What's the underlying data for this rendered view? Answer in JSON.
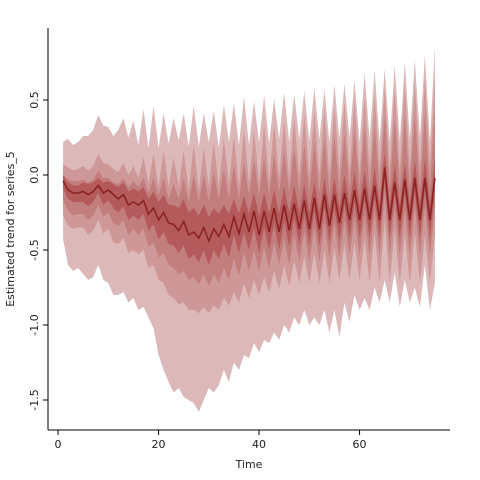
{
  "chart_data": {
    "type": "area",
    "xlabel": "Time",
    "ylabel": "Estimated trend for series_5",
    "xlim": [
      -2,
      78
    ],
    "ylim": [
      -1.7,
      0.98
    ],
    "xticks": [
      0,
      20,
      40,
      60
    ],
    "yticks": [
      -1.5,
      -1.0,
      -0.5,
      0.0,
      0.5
    ],
    "ytick_labels": [
      "-1.5",
      "-1.0",
      "-0.5",
      "0.0",
      "0.5"
    ],
    "band_colors": [
      "#dcb8b8",
      "#cf9898",
      "#c27d7d",
      "#b55a5a"
    ],
    "median_color": "#8b2323",
    "x": [
      1,
      2,
      3,
      4,
      5,
      6,
      7,
      8,
      9,
      10,
      11,
      12,
      13,
      14,
      15,
      16,
      17,
      18,
      19,
      20,
      21,
      22,
      23,
      24,
      25,
      26,
      27,
      28,
      29,
      30,
      31,
      32,
      33,
      34,
      35,
      36,
      37,
      38,
      39,
      40,
      41,
      42,
      43,
      44,
      45,
      46,
      47,
      48,
      49,
      50,
      51,
      52,
      53,
      54,
      55,
      56,
      57,
      58,
      59,
      60,
      61,
      62,
      63,
      64,
      65,
      66,
      67,
      68,
      69,
      70,
      71,
      72,
      73,
      74,
      75
    ],
    "median": [
      -0.04,
      -0.1,
      -0.12,
      -0.12,
      -0.11,
      -0.13,
      -0.11,
      -0.07,
      -0.12,
      -0.1,
      -0.13,
      -0.16,
      -0.13,
      -0.2,
      -0.18,
      -0.2,
      -0.17,
      -0.26,
      -0.22,
      -0.3,
      -0.25,
      -0.32,
      -0.33,
      -0.37,
      -0.31,
      -0.4,
      -0.38,
      -0.42,
      -0.35,
      -0.44,
      -0.36,
      -0.41,
      -0.33,
      -0.41,
      -0.28,
      -0.39,
      -0.26,
      -0.38,
      -0.24,
      -0.4,
      -0.24,
      -0.38,
      -0.22,
      -0.38,
      -0.2,
      -0.37,
      -0.19,
      -0.36,
      -0.17,
      -0.36,
      -0.15,
      -0.36,
      -0.13,
      -0.34,
      -0.13,
      -0.32,
      -0.12,
      -0.3,
      -0.1,
      -0.3,
      -0.09,
      -0.3,
      -0.07,
      -0.3,
      0.05,
      -0.3,
      -0.05,
      -0.3,
      -0.03,
      -0.3,
      -0.02,
      -0.3,
      -0.02,
      -0.3,
      -0.02
    ],
    "bands": [
      {
        "lower": [
          -0.43,
          -0.6,
          -0.64,
          -0.62,
          -0.66,
          -0.7,
          -0.68,
          -0.6,
          -0.7,
          -0.72,
          -0.8,
          -0.8,
          -0.78,
          -0.85,
          -0.82,
          -0.9,
          -0.88,
          -0.95,
          -1.02,
          -1.2,
          -1.3,
          -1.38,
          -1.45,
          -1.42,
          -1.48,
          -1.5,
          -1.52,
          -1.58,
          -1.5,
          -1.42,
          -1.45,
          -1.4,
          -1.3,
          -1.38,
          -1.25,
          -1.3,
          -1.2,
          -1.22,
          -1.12,
          -1.18,
          -1.1,
          -1.12,
          -1.05,
          -1.1,
          -1.0,
          -1.05,
          -0.95,
          -1.0,
          -0.9,
          -1.0,
          -0.95,
          -1.0,
          -0.9,
          -1.05,
          -0.9,
          -1.08,
          -0.85,
          -0.98,
          -0.8,
          -0.9,
          -0.82,
          -0.9,
          -0.75,
          -0.85,
          -0.7,
          -0.85,
          -0.65,
          -0.88,
          -0.7,
          -0.85,
          -0.75,
          -0.88,
          -0.6,
          -0.9,
          -0.72
        ],
        "upper": [
          0.22,
          0.24,
          0.2,
          0.22,
          0.26,
          0.26,
          0.3,
          0.4,
          0.33,
          0.32,
          0.26,
          0.3,
          0.38,
          0.25,
          0.36,
          0.2,
          0.44,
          0.18,
          0.46,
          0.18,
          0.41,
          0.21,
          0.38,
          0.23,
          0.41,
          0.19,
          0.46,
          0.19,
          0.41,
          0.22,
          0.43,
          0.18,
          0.47,
          0.22,
          0.48,
          0.2,
          0.52,
          0.2,
          0.49,
          0.22,
          0.53,
          0.21,
          0.51,
          0.24,
          0.55,
          0.22,
          0.54,
          0.24,
          0.56,
          0.23,
          0.58,
          0.24,
          0.57,
          0.22,
          0.6,
          0.24,
          0.61,
          0.25,
          0.63,
          0.22,
          0.68,
          0.24,
          0.7,
          0.22,
          0.71,
          0.22,
          0.73,
          0.23,
          0.75,
          0.24,
          0.77,
          0.25,
          0.8,
          0.22,
          0.86
        ]
      },
      {
        "lower": [
          -0.27,
          -0.34,
          -0.36,
          -0.35,
          -0.35,
          -0.4,
          -0.37,
          -0.3,
          -0.39,
          -0.36,
          -0.45,
          -0.46,
          -0.42,
          -0.52,
          -0.5,
          -0.53,
          -0.5,
          -0.62,
          -0.6,
          -0.7,
          -0.72,
          -0.8,
          -0.82,
          -0.86,
          -0.85,
          -0.9,
          -0.9,
          -0.92,
          -0.88,
          -0.92,
          -0.87,
          -0.9,
          -0.82,
          -0.87,
          -0.78,
          -0.85,
          -0.72,
          -0.82,
          -0.7,
          -0.8,
          -0.68,
          -0.78,
          -0.64,
          -0.76,
          -0.6,
          -0.74,
          -0.57,
          -0.72,
          -0.54,
          -0.72,
          -0.52,
          -0.72,
          -0.5,
          -0.72,
          -0.48,
          -0.7,
          -0.46,
          -0.7,
          -0.45,
          -0.7,
          -0.42,
          -0.72,
          -0.38,
          -0.72,
          -0.3,
          -0.72,
          -0.36,
          -0.72,
          -0.38,
          -0.72,
          -0.38,
          -0.72,
          -0.4,
          -0.72,
          -0.4
        ],
        "upper": [
          0.07,
          0.05,
          0.03,
          0.04,
          0.06,
          0.03,
          0.06,
          0.14,
          0.08,
          0.07,
          0.04,
          0.02,
          0.08,
          0.0,
          0.06,
          -0.02,
          0.12,
          -0.06,
          0.14,
          -0.08,
          0.16,
          -0.08,
          0.12,
          -0.08,
          0.16,
          -0.1,
          0.2,
          -0.1,
          0.18,
          -0.08,
          0.22,
          -0.08,
          0.24,
          -0.06,
          0.26,
          -0.08,
          0.3,
          -0.06,
          0.3,
          -0.06,
          0.33,
          -0.04,
          0.34,
          -0.02,
          0.36,
          -0.02,
          0.38,
          0.0,
          0.4,
          0.0,
          0.42,
          0.0,
          0.44,
          0.0,
          0.46,
          0.02,
          0.48,
          0.02,
          0.5,
          0.02,
          0.52,
          0.04,
          0.54,
          0.04,
          0.58,
          0.04,
          0.58,
          0.04,
          0.6,
          0.05,
          0.62,
          0.05,
          0.64,
          0.05,
          0.65
        ]
      },
      {
        "lower": [
          -0.17,
          -0.24,
          -0.27,
          -0.26,
          -0.26,
          -0.3,
          -0.27,
          -0.2,
          -0.28,
          -0.25,
          -0.32,
          -0.34,
          -0.3,
          -0.4,
          -0.36,
          -0.4,
          -0.36,
          -0.48,
          -0.45,
          -0.55,
          -0.52,
          -0.6,
          -0.62,
          -0.66,
          -0.64,
          -0.7,
          -0.68,
          -0.73,
          -0.66,
          -0.74,
          -0.66,
          -0.72,
          -0.62,
          -0.7,
          -0.56,
          -0.67,
          -0.52,
          -0.64,
          -0.5,
          -0.64,
          -0.48,
          -0.62,
          -0.45,
          -0.6,
          -0.42,
          -0.6,
          -0.4,
          -0.58,
          -0.37,
          -0.58,
          -0.34,
          -0.58,
          -0.32,
          -0.56,
          -0.32,
          -0.56,
          -0.3,
          -0.54,
          -0.28,
          -0.54,
          -0.27,
          -0.54,
          -0.24,
          -0.54,
          -0.12,
          -0.54,
          -0.22,
          -0.54,
          -0.22,
          -0.54,
          -0.2,
          -0.54,
          -0.2,
          -0.54,
          -0.2
        ],
        "upper": [
          0.0,
          -0.03,
          -0.04,
          -0.04,
          -0.03,
          -0.05,
          -0.03,
          0.03,
          -0.02,
          -0.02,
          -0.05,
          -0.06,
          -0.02,
          -0.08,
          -0.04,
          -0.08,
          -0.02,
          -0.12,
          -0.02,
          -0.14,
          -0.02,
          -0.16,
          -0.06,
          -0.16,
          -0.02,
          -0.18,
          0.0,
          -0.18,
          0.0,
          -0.18,
          0.02,
          -0.16,
          0.04,
          -0.16,
          0.06,
          -0.16,
          0.08,
          -0.14,
          0.1,
          -0.14,
          0.12,
          -0.14,
          0.14,
          -0.12,
          0.16,
          -0.12,
          0.18,
          -0.12,
          0.2,
          -0.12,
          0.22,
          -0.12,
          0.24,
          -0.12,
          0.26,
          -0.12,
          0.28,
          -0.1,
          0.3,
          -0.1,
          0.32,
          -0.1,
          0.33,
          -0.1,
          0.4,
          -0.1,
          0.37,
          -0.1,
          0.38,
          -0.1,
          0.4,
          -0.1,
          0.41,
          -0.1,
          0.42
        ]
      },
      {
        "lower": [
          -0.09,
          -0.16,
          -0.18,
          -0.18,
          -0.18,
          -0.21,
          -0.18,
          -0.12,
          -0.2,
          -0.17,
          -0.22,
          -0.25,
          -0.21,
          -0.3,
          -0.27,
          -0.3,
          -0.26,
          -0.37,
          -0.33,
          -0.43,
          -0.38,
          -0.46,
          -0.47,
          -0.52,
          -0.47,
          -0.56,
          -0.53,
          -0.58,
          -0.5,
          -0.6,
          -0.5,
          -0.56,
          -0.46,
          -0.55,
          -0.4,
          -0.52,
          -0.38,
          -0.5,
          -0.35,
          -0.52,
          -0.35,
          -0.5,
          -0.32,
          -0.5,
          -0.3,
          -0.48,
          -0.28,
          -0.47,
          -0.26,
          -0.47,
          -0.24,
          -0.47,
          -0.22,
          -0.45,
          -0.22,
          -0.44,
          -0.2,
          -0.42,
          -0.18,
          -0.42,
          -0.17,
          -0.42,
          -0.15,
          -0.42,
          -0.04,
          -0.42,
          -0.13,
          -0.42,
          -0.12,
          -0.42,
          -0.11,
          -0.42,
          -0.11,
          -0.42,
          -0.1
        ],
        "upper": [
          0.0,
          -0.05,
          -0.07,
          -0.07,
          -0.05,
          -0.06,
          -0.05,
          -0.02,
          -0.05,
          -0.04,
          -0.06,
          -0.08,
          -0.05,
          -0.11,
          -0.09,
          -0.11,
          -0.08,
          -0.16,
          -0.11,
          -0.18,
          -0.13,
          -0.2,
          -0.2,
          -0.22,
          -0.16,
          -0.25,
          -0.22,
          -0.27,
          -0.2,
          -0.28,
          -0.22,
          -0.26,
          -0.2,
          -0.26,
          -0.16,
          -0.26,
          -0.14,
          -0.26,
          -0.12,
          -0.27,
          -0.12,
          -0.26,
          -0.1,
          -0.26,
          -0.08,
          -0.25,
          -0.07,
          -0.25,
          -0.06,
          -0.25,
          -0.04,
          -0.25,
          -0.02,
          -0.23,
          -0.02,
          -0.22,
          0.0,
          -0.2,
          0.02,
          -0.2,
          0.03,
          -0.2,
          0.05,
          -0.2,
          0.15,
          -0.2,
          0.07,
          -0.2,
          0.08,
          -0.2,
          0.1,
          -0.2,
          0.11,
          -0.2,
          0.12
        ]
      }
    ]
  }
}
